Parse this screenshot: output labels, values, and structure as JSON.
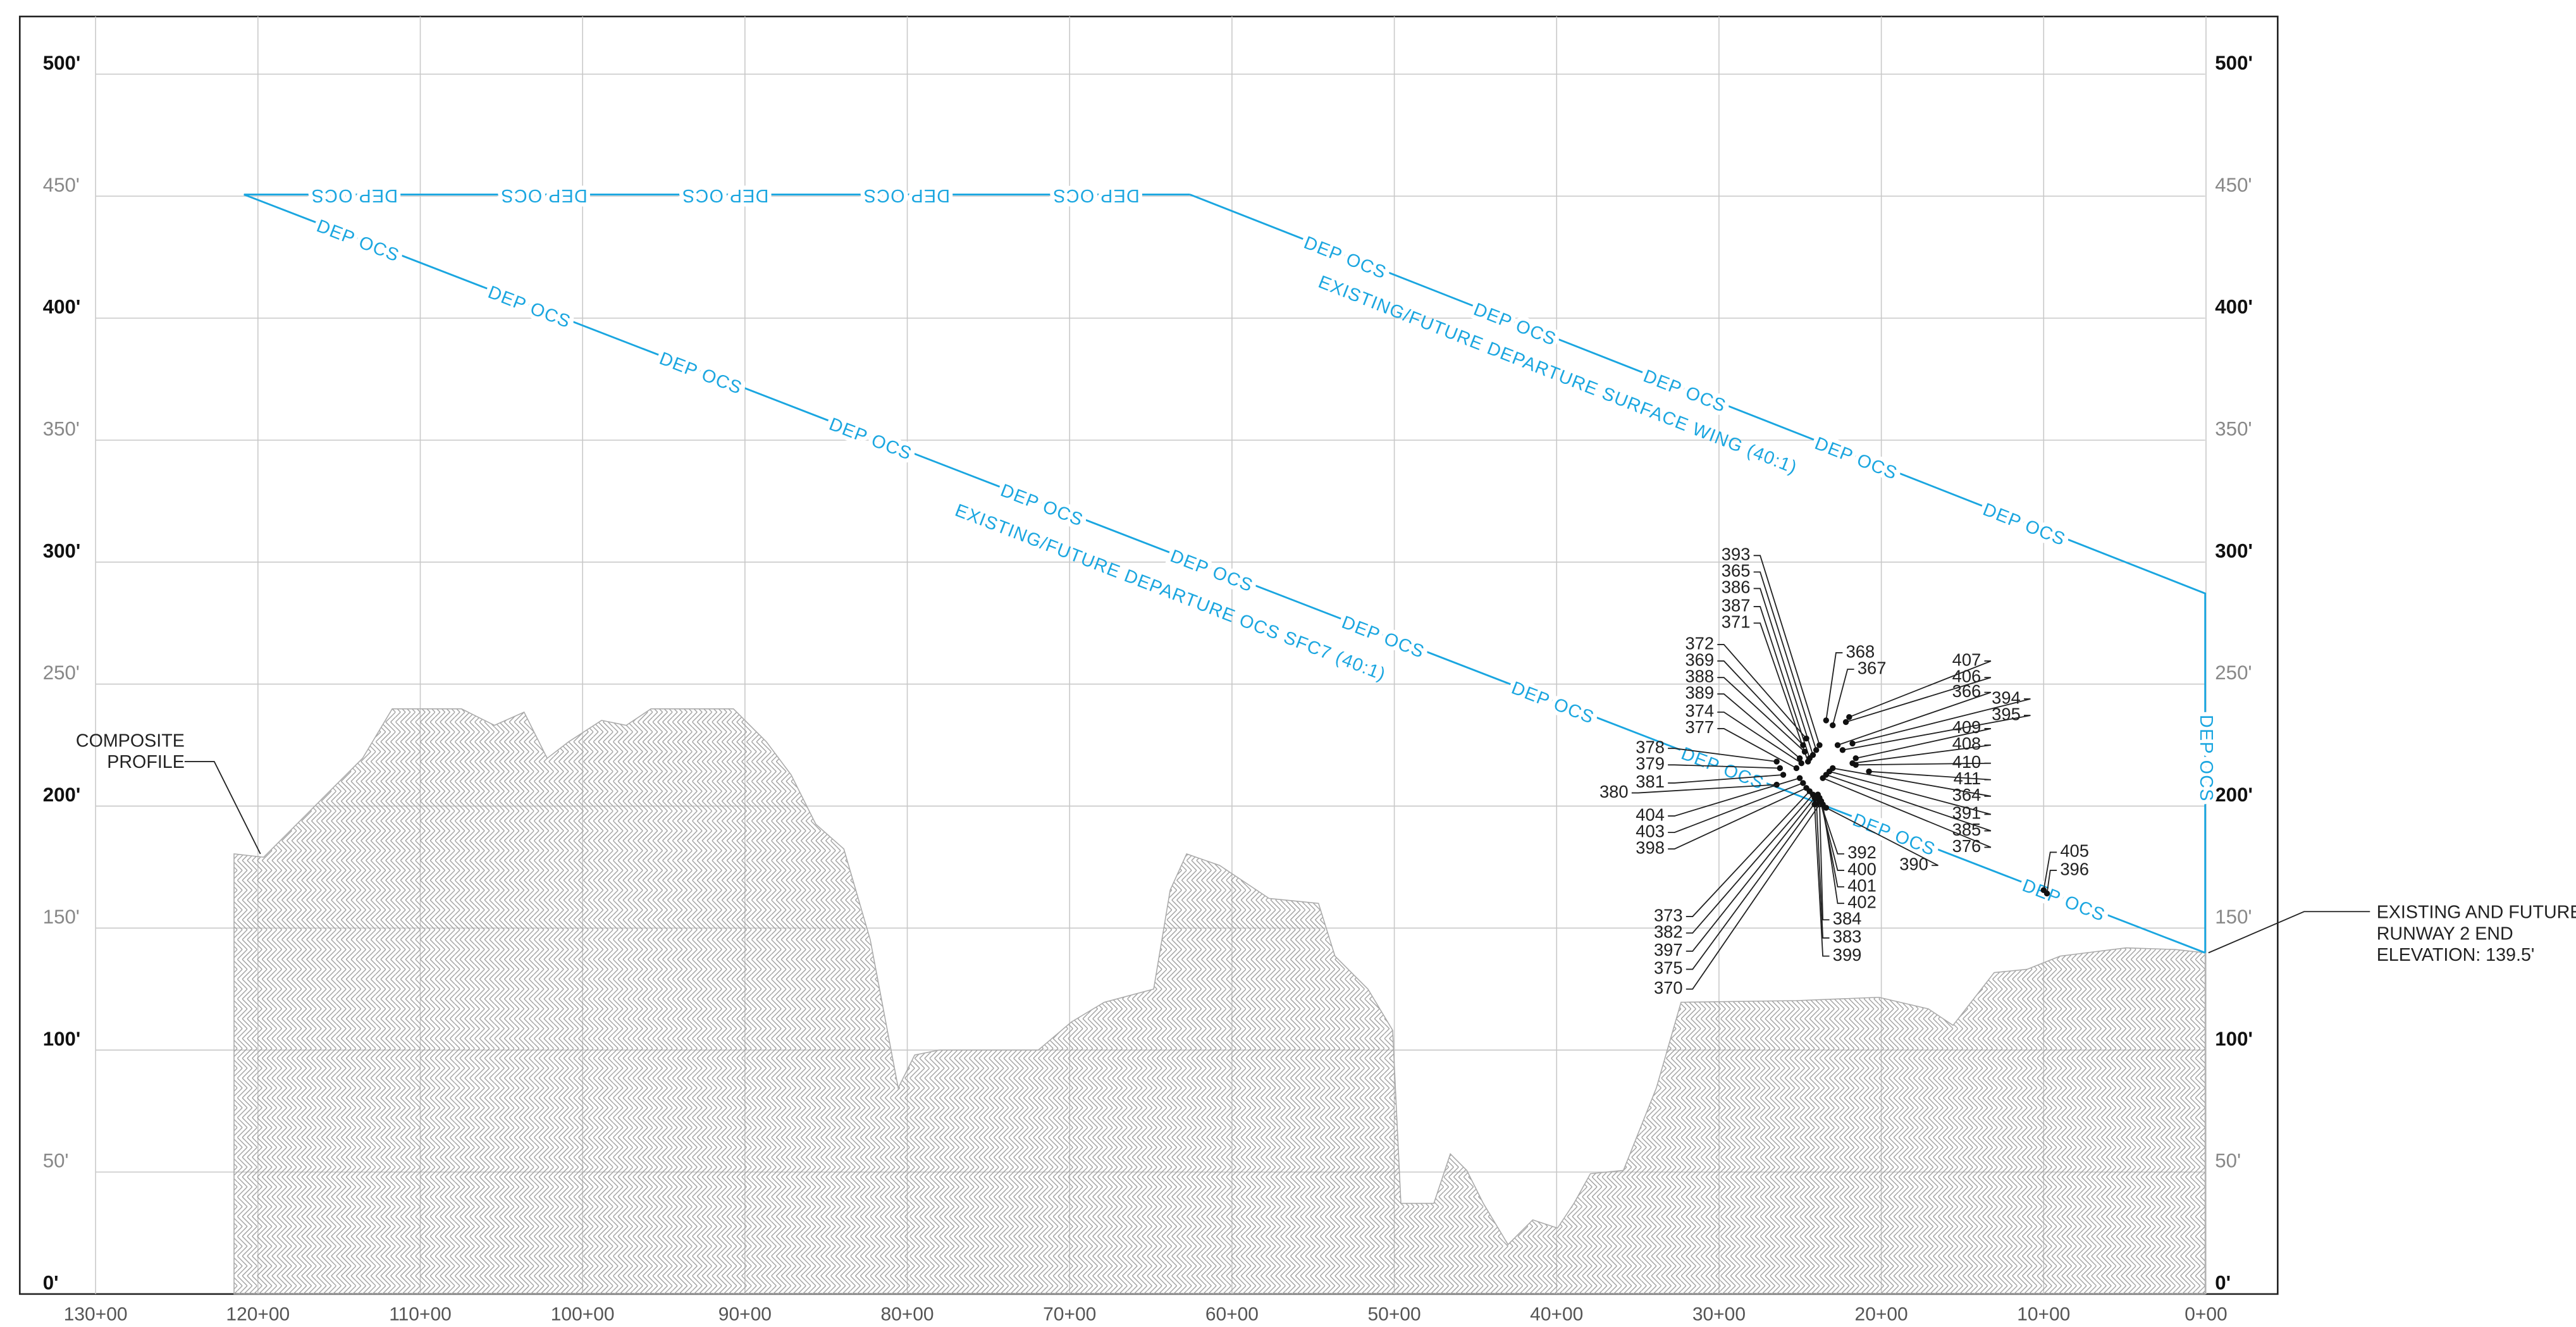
{
  "elevation_labels": [
    "0'",
    "50'",
    "100'",
    "150'",
    "200'",
    "250'",
    "300'",
    "350'",
    "400'",
    "450'",
    "500'"
  ],
  "station_labels": [
    "130+00",
    "120+00",
    "110+00",
    "100+00",
    "90+00",
    "80+00",
    "70+00",
    "60+00",
    "50+00",
    "40+00",
    "30+00",
    "20+00",
    "10+00",
    "0+00"
  ],
  "composite_profile": [
    "COMPOSITE",
    "PROFILE"
  ],
  "runway_note": [
    "EXISTING AND FUTURE",
    "RUNWAY 2 END",
    "ELEVATION: 139.5'"
  ],
  "surface_label": "DEP OCS",
  "surface_names": [
    "EXISTING/FUTURE DEPARTURE OCS SFC7 (40:1)",
    "EXISTING/FUTURE DEPARTURE SURFACE WING (40:1)"
  ],
  "obstructions": [
    "393",
    "365",
    "386",
    "387",
    "371",
    "372",
    "369",
    "388",
    "389",
    "374",
    "377",
    "378",
    "379",
    "381",
    "380",
    "404",
    "403",
    "398",
    "373",
    "382",
    "397",
    "375",
    "370",
    "392",
    "400",
    "401",
    "402",
    "384",
    "383",
    "399",
    "368",
    "367",
    "407",
    "406",
    "366",
    "394",
    "395",
    "409",
    "408",
    "410",
    "411",
    "364",
    "391",
    "385",
    "376",
    "390",
    "405",
    "396"
  ]
}
